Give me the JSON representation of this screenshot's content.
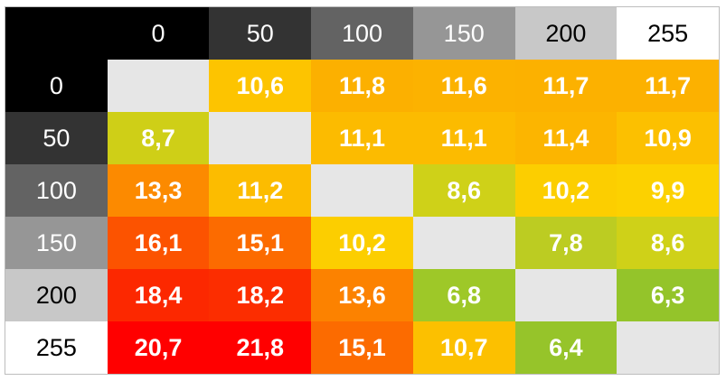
{
  "chart_data": {
    "type": "heatmap",
    "column_labels": [
      "0",
      "50",
      "100",
      "150",
      "200",
      "255"
    ],
    "row_labels": [
      "0",
      "50",
      "100",
      "150",
      "200",
      "255"
    ],
    "values": [
      [
        null,
        "10,6",
        "11,8",
        "11,6",
        "11,7",
        "11,7"
      ],
      [
        "8,7",
        null,
        "11,1",
        "11,1",
        "11,4",
        "10,9"
      ],
      [
        "13,3",
        "11,2",
        null,
        "8,6",
        "10,2",
        "9,9"
      ],
      [
        "16,1",
        "15,1",
        "10,2",
        null,
        "7,8",
        "8,6"
      ],
      [
        "18,4",
        "18,2",
        "13,6",
        "6,8",
        null,
        "6,3"
      ],
      [
        "20,7",
        "21,8",
        "15,1",
        "10,7",
        "6,4",
        null
      ]
    ],
    "header_backgrounds": [
      "#000000",
      "#333333",
      "#636363",
      "#969696",
      "#c8c8c8",
      "#ffffff"
    ],
    "header_text_colors": [
      "#ffffff",
      "#ffffff",
      "#ffffff",
      "#ffffff",
      "#000000",
      "#000000"
    ],
    "diagonal_color": "#e6e6e6",
    "cell_colors": [
      [
        null,
        "#fdc400",
        "#fcb000",
        "#fcb200",
        "#fcb100",
        "#fcb100"
      ],
      [
        "#cfcf17",
        null,
        "#fcbb00",
        "#fcbb00",
        "#fcb500",
        "#fcc000"
      ],
      [
        "#fc8a00",
        "#fcbc00",
        null,
        "#cfd118",
        "#fcce00",
        "#fcd100"
      ],
      [
        "#fc5300",
        "#fc6b00",
        "#fcce00",
        null,
        "#bccc22",
        "#cfd118"
      ],
      [
        "#fc2800",
        "#fc2d00",
        "#fc8200",
        "#9ec828",
        null,
        "#94c42a"
      ],
      [
        "#ff0000",
        "#ff0000",
        "#fc6b00",
        "#fcc000",
        "#96c42a",
        null
      ]
    ]
  }
}
